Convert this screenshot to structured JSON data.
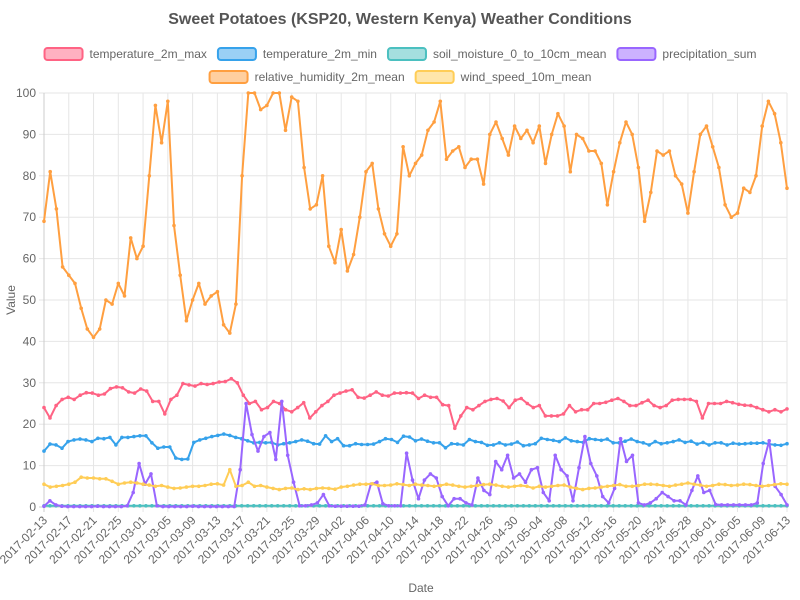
{
  "chart_data": {
    "type": "line",
    "title": "Sweet Potatoes (KSP20, Western Kenya) Weather Conditions",
    "xlabel": "Date",
    "ylabel": "Value",
    "ylim": [
      0,
      100
    ],
    "yticks": [
      0,
      10,
      20,
      30,
      40,
      50,
      60,
      70,
      80,
      90,
      100
    ],
    "grid": true,
    "legend_position": "top",
    "x_start": "2017-02-13",
    "x_end": "2017-06-13",
    "x_tick_labels": [
      "2017-02-13",
      "2017-02-17",
      "2017-02-21",
      "2017-02-25",
      "2017-03-01",
      "2017-03-05",
      "2017-03-09",
      "2017-03-13",
      "2017-03-17",
      "2017-03-21",
      "2017-03-25",
      "2017-03-29",
      "2017-04-02",
      "2017-04-06",
      "2017-04-10",
      "2017-04-14",
      "2017-04-18",
      "2017-04-22",
      "2017-04-26",
      "2017-04-30",
      "2017-05-04",
      "2017-05-08",
      "2017-05-12",
      "2017-05-16",
      "2017-05-20",
      "2017-05-24",
      "2017-05-28",
      "2017-06-01",
      "2017-06-05",
      "2017-06-09",
      "2017-06-13"
    ],
    "series": [
      {
        "name": "temperature_2m_max",
        "color": "#ff6384",
        "values": [
          24.0,
          21.5,
          24.5,
          26.0,
          26.5,
          26.0,
          27.0,
          27.6,
          27.5,
          27.0,
          27.3,
          28.6,
          29.0,
          28.8,
          27.8,
          27.5,
          28.5,
          28.0,
          25.5,
          25.5,
          22.5,
          26.0,
          27.0,
          29.8,
          29.5,
          29.2,
          29.8,
          29.6,
          29.8,
          30.2,
          30.3,
          31.0,
          30.0,
          27.0,
          25.0,
          25.5,
          23.5,
          24.0,
          25.5,
          25.0,
          23.5,
          23.0,
          24.0,
          25.2,
          21.5,
          23.0,
          24.5,
          25.5,
          27.0,
          27.5,
          28.0,
          28.3,
          26.5,
          26.3,
          27.0,
          27.8,
          27.0,
          26.8,
          27.5,
          27.5,
          27.6,
          27.5,
          26.2,
          27.0,
          26.5,
          26.5,
          24.7,
          24.5,
          19.0,
          22.0,
          24.0,
          23.5,
          24.5,
          25.5,
          26.0,
          26.2,
          25.6,
          24.0,
          25.8,
          26.2,
          25.0,
          24.0,
          24.5,
          22.0,
          22.0,
          22.0,
          22.5,
          24.5,
          23.0,
          23.5,
          23.5,
          25.0,
          25.0,
          25.3,
          25.8,
          26.2,
          25.5,
          24.5,
          24.5,
          25.2,
          25.8,
          24.5,
          24.0,
          24.5,
          25.8,
          26.0,
          26.0,
          26.0,
          25.5,
          21.5,
          25.0,
          25.0,
          25.0,
          25.5,
          25.2,
          24.8,
          24.6,
          24.5,
          24.0,
          23.5,
          23.0,
          23.5,
          23.0,
          23.7
        ]
      },
      {
        "name": "temperature_2m_min",
        "color": "#36a2eb",
        "values": [
          13.5,
          15.2,
          15.0,
          14.2,
          15.8,
          16.2,
          16.4,
          16.2,
          15.8,
          16.6,
          16.5,
          16.8,
          15.0,
          16.8,
          16.8,
          17.0,
          17.2,
          17.2,
          15.5,
          14.2,
          14.5,
          14.5,
          11.8,
          11.5,
          11.6,
          15.6,
          16.2,
          16.6,
          17.0,
          17.3,
          17.6,
          17.3,
          16.8,
          16.5,
          16.0,
          15.5,
          15.6,
          15.5,
          15.6,
          15.0,
          15.3,
          15.5,
          15.8,
          16.2,
          15.9,
          15.3,
          15.2,
          17.2,
          15.8,
          16.5,
          14.8,
          14.8,
          15.3,
          15.1,
          15.1,
          15.2,
          15.8,
          16.5,
          16.3,
          15.6,
          17.1,
          16.9,
          16.0,
          16.4,
          15.9,
          15.5,
          15.5,
          14.3,
          15.3,
          15.2,
          15.0,
          16.3,
          15.8,
          15.6,
          14.9,
          15.0,
          15.5,
          15.0,
          15.2,
          15.7,
          14.8,
          15.0,
          15.3,
          16.6,
          16.3,
          16.1,
          15.8,
          16.7,
          16.0,
          15.8,
          15.6,
          16.5,
          16.3,
          16.1,
          16.4,
          15.5,
          15.5,
          15.9,
          16.4,
          15.8,
          15.5,
          15.0,
          15.8,
          15.3,
          15.5,
          15.8,
          16.2,
          15.6,
          15.9,
          15.2,
          15.6,
          15.0,
          15.5,
          15.5,
          15.0,
          15.4,
          15.2,
          15.3,
          15.4,
          15.4,
          15.5,
          15.2,
          15.0,
          14.9,
          15.3
        ]
      },
      {
        "name": "soil_moisture_0_to_10cm_mean",
        "color": "#4bc0c0",
        "values": [
          0.3,
          0.3,
          0.3,
          0.3,
          0.3,
          0.3,
          0.3,
          0.3,
          0.3,
          0.3,
          0.3,
          0.3,
          0.3,
          0.3,
          0.3,
          0.3,
          0.3,
          0.3,
          0.3,
          0.3,
          0.3,
          0.3,
          0.3,
          0.3,
          0.3,
          0.3,
          0.3,
          0.3,
          0.3,
          0.3,
          0.3,
          0.3,
          0.3,
          0.3,
          0.3,
          0.3,
          0.3,
          0.3,
          0.3,
          0.3,
          0.3,
          0.3,
          0.3,
          0.3,
          0.3,
          0.3,
          0.3,
          0.3,
          0.3,
          0.3,
          0.3,
          0.3,
          0.3,
          0.3,
          0.3,
          0.3,
          0.3,
          0.3,
          0.3,
          0.3,
          0.3,
          0.3,
          0.3,
          0.3,
          0.3,
          0.3,
          0.3,
          0.3,
          0.3,
          0.3,
          0.3,
          0.3,
          0.3,
          0.3,
          0.3,
          0.3,
          0.3,
          0.3,
          0.3,
          0.3,
          0.3,
          0.3,
          0.3,
          0.3,
          0.3,
          0.3,
          0.3,
          0.3,
          0.3,
          0.3,
          0.3,
          0.3,
          0.3,
          0.3,
          0.3,
          0.3,
          0.3,
          0.3,
          0.3,
          0.3,
          0.3,
          0.3,
          0.3,
          0.3,
          0.3,
          0.3,
          0.3,
          0.3,
          0.3,
          0.3,
          0.3,
          0.3,
          0.3,
          0.3,
          0.3,
          0.3,
          0.3,
          0.3,
          0.3,
          0.3,
          0.3,
          0.3,
          0.3,
          0.3,
          0.3
        ]
      },
      {
        "name": "precipitation_sum",
        "color": "#9966ff",
        "values": [
          0.2,
          1.5,
          0.5,
          0.2,
          0.1,
          0.1,
          0.1,
          0.1,
          0.1,
          0.2,
          0.1,
          0.1,
          0.1,
          0.1,
          0.3,
          3.5,
          10.5,
          5.5,
          8.0,
          0.3,
          0.1,
          0.1,
          0.1,
          0.1,
          0.1,
          0.2,
          0.1,
          0.1,
          0.1,
          0.1,
          0.1,
          0.1,
          0.1,
          9.0,
          25.0,
          17.5,
          13.5,
          17.0,
          18.0,
          11.5,
          25.5,
          12.5,
          6.0,
          0.3,
          0.3,
          0.5,
          1.0,
          3.0,
          0.3,
          0.2,
          0.2,
          0.2,
          0.2,
          0.2,
          0.5,
          5.5,
          6.0,
          0.8,
          0.3,
          0.3,
          0.3,
          13.0,
          6.5,
          2.0,
          6.5,
          8.0,
          7.0,
          2.5,
          0.3,
          2.0,
          2.0,
          1.0,
          0.5,
          7.0,
          4.0,
          3.0,
          11.0,
          9.0,
          12.5,
          7.0,
          8.0,
          6.0,
          9.0,
          9.5,
          3.5,
          1.5,
          12.5,
          9.0,
          7.5,
          1.5,
          9.5,
          17.0,
          10.5,
          7.5,
          2.5,
          1.0,
          4.5,
          16.5,
          11.0,
          12.5,
          1.0,
          0.5,
          1.0,
          2.0,
          3.5,
          2.5,
          1.5,
          1.5,
          0.5,
          4.0,
          7.5,
          3.5,
          4.0,
          0.6,
          0.5,
          0.5,
          0.5,
          0.5,
          0.5,
          0.5,
          1.0,
          10.5,
          16.0,
          5.0,
          3.0,
          0.5
        ]
      },
      {
        "name": "relative_humidity_2m_mean",
        "color": "#ff9f40",
        "values": [
          69,
          81,
          72,
          58,
          56,
          54,
          48,
          43,
          41,
          43,
          50,
          49,
          54,
          51,
          65,
          60,
          63,
          80,
          97,
          88,
          98,
          68,
          56,
          45,
          50,
          54,
          49,
          51,
          52,
          44,
          42,
          49,
          80,
          100,
          100,
          96,
          97,
          100,
          100,
          91,
          99,
          98,
          82,
          72,
          73,
          80,
          63,
          59,
          67,
          57,
          61,
          70,
          81,
          83,
          72,
          66,
          63,
          66,
          87,
          80,
          83,
          85,
          91,
          93,
          98,
          84,
          86,
          87,
          82,
          84,
          84,
          78,
          90,
          93,
          89,
          85,
          92,
          89,
          91,
          88,
          92,
          83,
          90,
          95,
          92,
          81,
          90,
          89,
          86,
          86,
          83,
          73,
          81,
          88,
          93,
          90,
          82,
          69,
          76,
          86,
          85,
          86,
          80,
          78,
          71,
          81,
          90,
          92,
          87,
          82,
          73,
          70,
          71,
          77,
          76,
          80,
          92,
          98,
          95,
          88,
          77
        ]
      },
      {
        "name": "wind_speed_10m_mean",
        "color": "#ffcd56",
        "values": [
          5.5,
          4.8,
          5.0,
          5.2,
          5.5,
          6.0,
          7.2,
          7.0,
          7.0,
          6.8,
          6.8,
          6.2,
          5.5,
          5.8,
          6.0,
          5.8,
          5.5,
          5.3,
          5.0,
          5.2,
          4.8,
          4.5,
          4.6,
          4.8,
          5.0,
          5.0,
          5.2,
          5.5,
          5.6,
          5.3,
          9.0,
          5.0,
          5.2,
          6.0,
          5.0,
          5.2,
          4.8,
          4.5,
          4.2,
          4.5,
          4.6,
          4.2,
          4.4,
          4.2,
          4.5,
          4.6,
          4.5,
          4.3,
          4.8,
          5.0,
          5.3,
          5.5,
          5.5,
          5.6,
          5.2,
          5.2,
          5.3,
          5.6,
          5.4,
          5.2,
          5.5,
          5.3,
          5.2,
          5.0,
          5.2,
          5.5,
          5.3,
          5.0,
          4.8,
          5.0,
          5.2,
          5.4,
          5.5,
          5.3,
          5.0,
          4.8,
          5.0,
          5.2,
          5.0,
          4.6,
          5.0,
          4.8,
          5.0,
          5.2,
          5.3,
          4.8,
          4.5,
          4.2,
          4.5,
          4.6,
          4.8,
          5.0,
          5.2,
          5.4,
          5.0,
          5.0,
          5.2,
          5.5,
          5.5,
          5.4,
          5.2,
          5.0,
          5.3,
          5.5,
          5.8,
          5.5,
          5.3,
          5.0,
          5.2,
          5.5,
          5.4,
          5.2,
          5.3,
          5.5,
          5.4,
          5.2,
          5.0,
          5.2,
          5.4,
          5.6,
          5.5
        ]
      }
    ]
  }
}
